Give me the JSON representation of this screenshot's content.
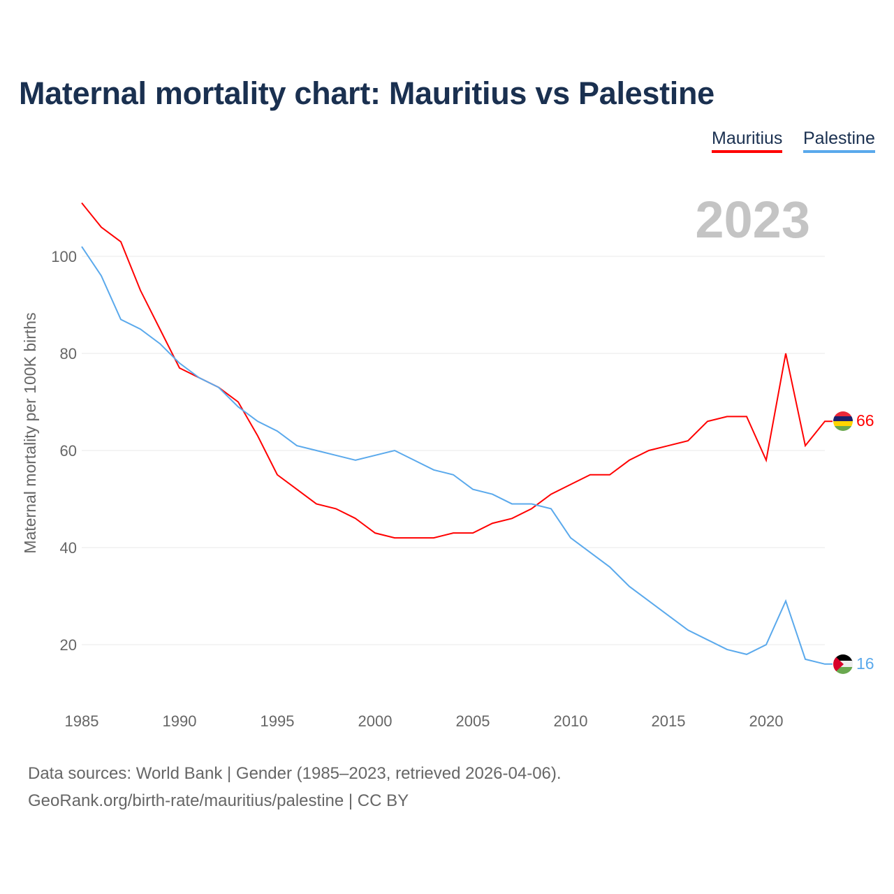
{
  "chart_data": {
    "type": "line",
    "title": "Maternal mortality chart: Mauritius vs Palestine",
    "ylabel": "Maternal mortality per 100K births",
    "xlabel": "",
    "year_label": "2023",
    "x": [
      1985,
      1986,
      1987,
      1988,
      1989,
      1990,
      1991,
      1992,
      1993,
      1994,
      1995,
      1996,
      1997,
      1998,
      1999,
      2000,
      2001,
      2002,
      2003,
      2004,
      2005,
      2006,
      2007,
      2008,
      2009,
      2010,
      2011,
      2012,
      2013,
      2014,
      2015,
      2016,
      2017,
      2018,
      2019,
      2020,
      2021,
      2022,
      2023
    ],
    "xticks": [
      "1985",
      "1990",
      "1995",
      "2000",
      "2005",
      "2010",
      "2015",
      "2020"
    ],
    "yticks": [
      "20",
      "40",
      "60",
      "80",
      "100"
    ],
    "ylim": [
      0,
      110
    ],
    "grid": true,
    "legend_position": "top-right",
    "series": [
      {
        "name": "Mauritius",
        "color": "#ff0000",
        "end_label": "66",
        "values": [
          111,
          106,
          103,
          93,
          85,
          77,
          75,
          73,
          70,
          63,
          55,
          52,
          49,
          48,
          46,
          43,
          42,
          42,
          42,
          43,
          43,
          45,
          46,
          48,
          51,
          53,
          55,
          55,
          58,
          60,
          61,
          62,
          66,
          67,
          67,
          58,
          80,
          61,
          66
        ]
      },
      {
        "name": "Palestine",
        "color": "#5aa9ec",
        "end_label": "16",
        "values": [
          102,
          96,
          87,
          85,
          82,
          78,
          75,
          73,
          69,
          66,
          64,
          61,
          60,
          59,
          58,
          59,
          60,
          58,
          56,
          55,
          52,
          51,
          49,
          49,
          48,
          42,
          39,
          36,
          32,
          29,
          26,
          23,
          21,
          19,
          18,
          20,
          29,
          17,
          16
        ]
      }
    ]
  },
  "footer": {
    "line1": "Data sources: World Bank | Gender (1985–2023, retrieved 2026-04-06).",
    "line2": "GeoRank.org/birth-rate/mauritius/palestine | CC BY"
  }
}
